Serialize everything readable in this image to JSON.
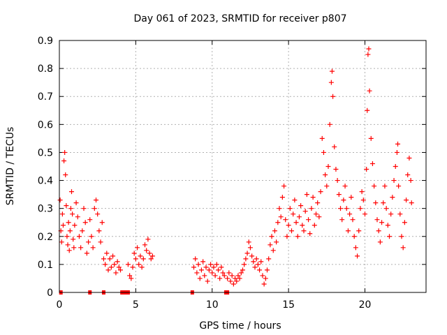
{
  "chart_data": {
    "type": "scatter",
    "title": "Day 061 of 2023, SRMTID for receiver p807",
    "xlabel": "GPS time / hours",
    "ylabel": "SRMTID / TECUs",
    "xlim": [
      0,
      24
    ],
    "ylim": [
      0,
      0.9
    ],
    "xticks": [
      0,
      5,
      10,
      15,
      20
    ],
    "yticks": [
      0,
      0.1,
      0.2,
      0.3,
      0.4,
      0.5,
      0.6,
      0.7,
      0.8,
      0.9
    ],
    "xtick_labels": [
      "0",
      "5",
      "10",
      "15",
      "20"
    ],
    "ytick_labels": [
      "0",
      "0.1",
      "0.2",
      "0.3",
      "0.4",
      "0.5",
      "0.6",
      "0.7",
      "0.8",
      "0.9"
    ],
    "grid": true,
    "marker": "+",
    "color": "#ff0000",
    "zero_markers_x": [
      0.1,
      2.0,
      2.9,
      4.1,
      4.2,
      4.3,
      4.4,
      4.5,
      8.7,
      10.9,
      11.0
    ],
    "series": [
      {
        "name": "SRMTID",
        "points": [
          [
            0.05,
            0.33
          ],
          [
            0.1,
            0.22
          ],
          [
            0.15,
            0.18
          ],
          [
            0.2,
            0.28
          ],
          [
            0.25,
            0.24
          ],
          [
            0.3,
            0.47
          ],
          [
            0.35,
            0.5
          ],
          [
            0.4,
            0.42
          ],
          [
            0.45,
            0.31
          ],
          [
            0.5,
            0.2
          ],
          [
            0.55,
            0.17
          ],
          [
            0.6,
            0.25
          ],
          [
            0.65,
            0.15
          ],
          [
            0.7,
            0.22
          ],
          [
            0.75,
            0.3
          ],
          [
            0.8,
            0.36
          ],
          [
            0.85,
            0.28
          ],
          [
            0.9,
            0.19
          ],
          [
            0.95,
            0.16
          ],
          [
            1.0,
            0.24
          ],
          [
            1.1,
            0.32
          ],
          [
            1.2,
            0.27
          ],
          [
            1.3,
            0.2
          ],
          [
            1.4,
            0.16
          ],
          [
            1.5,
            0.22
          ],
          [
            1.6,
            0.3
          ],
          [
            1.7,
            0.25
          ],
          [
            1.8,
            0.14
          ],
          [
            1.9,
            0.18
          ],
          [
            2.0,
            0.26
          ],
          [
            2.1,
            0.2
          ],
          [
            2.2,
            0.16
          ],
          [
            2.3,
            0.3
          ],
          [
            2.4,
            0.33
          ],
          [
            2.5,
            0.28
          ],
          [
            2.6,
            0.22
          ],
          [
            2.7,
            0.18
          ],
          [
            2.8,
            0.25
          ],
          [
            2.9,
            0.12
          ],
          [
            3.0,
            0.1
          ],
          [
            3.1,
            0.14
          ],
          [
            3.2,
            0.08
          ],
          [
            3.3,
            0.12
          ],
          [
            3.4,
            0.09
          ],
          [
            3.5,
            0.13
          ],
          [
            3.6,
            0.1
          ],
          [
            3.7,
            0.07
          ],
          [
            3.8,
            0.11
          ],
          [
            3.9,
            0.09
          ],
          [
            4.0,
            0.08
          ],
          [
            4.5,
            0.1
          ],
          [
            4.6,
            0.06
          ],
          [
            4.7,
            0.05
          ],
          [
            4.8,
            0.09
          ],
          [
            4.9,
            0.14
          ],
          [
            5.0,
            0.12
          ],
          [
            5.1,
            0.16
          ],
          [
            5.2,
            0.1
          ],
          [
            5.3,
            0.13
          ],
          [
            5.4,
            0.09
          ],
          [
            5.5,
            0.12
          ],
          [
            5.6,
            0.17
          ],
          [
            5.7,
            0.15
          ],
          [
            5.8,
            0.19
          ],
          [
            5.9,
            0.14
          ],
          [
            6.0,
            0.12
          ],
          [
            6.1,
            0.13
          ],
          [
            8.8,
            0.09
          ],
          [
            8.9,
            0.12
          ],
          [
            9.0,
            0.07
          ],
          [
            9.1,
            0.1
          ],
          [
            9.2,
            0.05
          ],
          [
            9.3,
            0.08
          ],
          [
            9.4,
            0.11
          ],
          [
            9.5,
            0.06
          ],
          [
            9.6,
            0.09
          ],
          [
            9.7,
            0.04
          ],
          [
            9.8,
            0.08
          ],
          [
            9.9,
            0.1
          ],
          [
            10.0,
            0.07
          ],
          [
            10.1,
            0.09
          ],
          [
            10.2,
            0.06
          ],
          [
            10.3,
            0.1
          ],
          [
            10.4,
            0.08
          ],
          [
            10.5,
            0.05
          ],
          [
            10.6,
            0.09
          ],
          [
            10.7,
            0.07
          ],
          [
            10.8,
            0.06
          ],
          [
            11.0,
            0.05
          ],
          [
            11.1,
            0.07
          ],
          [
            11.2,
            0.04
          ],
          [
            11.3,
            0.06
          ],
          [
            11.4,
            0.03
          ],
          [
            11.5,
            0.05
          ],
          [
            11.6,
            0.04
          ],
          [
            11.7,
            0.06
          ],
          [
            11.8,
            0.05
          ],
          [
            11.9,
            0.07
          ],
          [
            12.0,
            0.08
          ],
          [
            12.1,
            0.1
          ],
          [
            12.2,
            0.12
          ],
          [
            12.3,
            0.14
          ],
          [
            12.4,
            0.18
          ],
          [
            12.5,
            0.16
          ],
          [
            12.6,
            0.13
          ],
          [
            12.7,
            0.11
          ],
          [
            12.8,
            0.09
          ],
          [
            12.9,
            0.12
          ],
          [
            13.0,
            0.1
          ],
          [
            13.1,
            0.08
          ],
          [
            13.2,
            0.11
          ],
          [
            13.3,
            0.06
          ],
          [
            13.4,
            0.03
          ],
          [
            13.5,
            0.05
          ],
          [
            13.6,
            0.08
          ],
          [
            13.7,
            0.12
          ],
          [
            13.8,
            0.17
          ],
          [
            13.9,
            0.2
          ],
          [
            14.0,
            0.15
          ],
          [
            14.1,
            0.22
          ],
          [
            14.2,
            0.18
          ],
          [
            14.3,
            0.25
          ],
          [
            14.4,
            0.3
          ],
          [
            14.5,
            0.27
          ],
          [
            14.6,
            0.34
          ],
          [
            14.7,
            0.38
          ],
          [
            14.8,
            0.26
          ],
          [
            14.9,
            0.2
          ],
          [
            15.0,
            0.24
          ],
          [
            15.1,
            0.3
          ],
          [
            15.2,
            0.22
          ],
          [
            15.3,
            0.28
          ],
          [
            15.4,
            0.33
          ],
          [
            15.5,
            0.25
          ],
          [
            15.6,
            0.2
          ],
          [
            15.7,
            0.27
          ],
          [
            15.8,
            0.31
          ],
          [
            15.9,
            0.24
          ],
          [
            16.0,
            0.22
          ],
          [
            16.1,
            0.29
          ],
          [
            16.2,
            0.35
          ],
          [
            16.3,
            0.26
          ],
          [
            16.4,
            0.21
          ],
          [
            16.5,
            0.3
          ],
          [
            16.6,
            0.34
          ],
          [
            16.7,
            0.24
          ],
          [
            16.8,
            0.28
          ],
          [
            16.9,
            0.32
          ],
          [
            17.0,
            0.27
          ],
          [
            17.1,
            0.36
          ],
          [
            17.2,
            0.55
          ],
          [
            17.3,
            0.5
          ],
          [
            17.4,
            0.42
          ],
          [
            17.5,
            0.38
          ],
          [
            17.6,
            0.45
          ],
          [
            17.7,
            0.6
          ],
          [
            17.8,
            0.75
          ],
          [
            17.85,
            0.79
          ],
          [
            17.9,
            0.7
          ],
          [
            18.0,
            0.52
          ],
          [
            18.1,
            0.44
          ],
          [
            18.2,
            0.4
          ],
          [
            18.3,
            0.35
          ],
          [
            18.4,
            0.3
          ],
          [
            18.5,
            0.26
          ],
          [
            18.6,
            0.33
          ],
          [
            18.7,
            0.38
          ],
          [
            18.8,
            0.3
          ],
          [
            18.9,
            0.22
          ],
          [
            19.0,
            0.28
          ],
          [
            19.1,
            0.34
          ],
          [
            19.2,
            0.26
          ],
          [
            19.3,
            0.2
          ],
          [
            19.4,
            0.16
          ],
          [
            19.5,
            0.13
          ],
          [
            19.6,
            0.22
          ],
          [
            19.7,
            0.3
          ],
          [
            19.8,
            0.36
          ],
          [
            19.9,
            0.33
          ],
          [
            20.0,
            0.28
          ],
          [
            20.1,
            0.44
          ],
          [
            20.15,
            0.65
          ],
          [
            20.2,
            0.85
          ],
          [
            20.25,
            0.87
          ],
          [
            20.3,
            0.72
          ],
          [
            20.4,
            0.55
          ],
          [
            20.5,
            0.46
          ],
          [
            20.6,
            0.38
          ],
          [
            20.7,
            0.32
          ],
          [
            20.8,
            0.26
          ],
          [
            20.9,
            0.22
          ],
          [
            21.0,
            0.18
          ],
          [
            21.1,
            0.25
          ],
          [
            21.2,
            0.32
          ],
          [
            21.3,
            0.38
          ],
          [
            21.4,
            0.3
          ],
          [
            21.5,
            0.24
          ],
          [
            21.6,
            0.2
          ],
          [
            21.7,
            0.28
          ],
          [
            21.8,
            0.34
          ],
          [
            21.9,
            0.4
          ],
          [
            22.0,
            0.45
          ],
          [
            22.1,
            0.5
          ],
          [
            22.15,
            0.53
          ],
          [
            22.2,
            0.38
          ],
          [
            22.3,
            0.28
          ],
          [
            22.4,
            0.2
          ],
          [
            22.5,
            0.16
          ],
          [
            22.6,
            0.25
          ],
          [
            22.7,
            0.33
          ],
          [
            22.8,
            0.42
          ],
          [
            22.9,
            0.48
          ],
          [
            23.0,
            0.4
          ],
          [
            23.05,
            0.32
          ]
        ]
      }
    ]
  }
}
